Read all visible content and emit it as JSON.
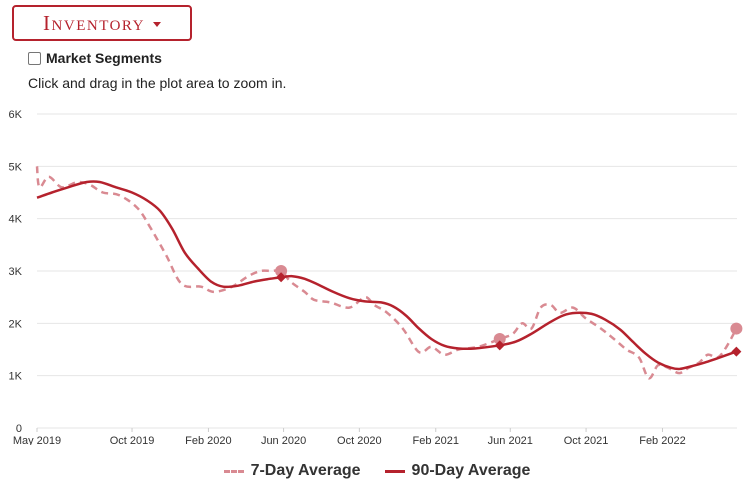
{
  "header": {
    "dropdown_label": "Inventory",
    "checkbox_label": "Market Segments",
    "hint": "Click and drag in the plot area to zoom in."
  },
  "colors": {
    "seven_day": "#d98a92",
    "ninety_day": "#b5222d",
    "accent": "#b5222d"
  },
  "chart_data": {
    "type": "line",
    "x_unit": "date",
    "x_ticks": [
      "May 2019",
      "Oct 2019",
      "Feb 2020",
      "Jun 2020",
      "Oct 2020",
      "Feb 2021",
      "Jun 2021",
      "Oct 2021",
      "Feb 2022"
    ],
    "x_tick_dates": [
      "2019-05-01",
      "2019-10-01",
      "2020-02-01",
      "2020-06-01",
      "2020-10-01",
      "2021-02-01",
      "2021-06-01",
      "2021-10-01",
      "2022-02-01"
    ],
    "x_range": [
      "2019-05-01",
      "2022-06-01"
    ],
    "y_ticks": [
      "0",
      "1K",
      "2K",
      "3K",
      "4K",
      "5K",
      "6K"
    ],
    "ylim": [
      0,
      6000
    ],
    "grid": true,
    "legend_position": "bottom",
    "series": [
      {
        "name": "7-Day Average",
        "style": "dashed",
        "marker": "circle",
        "points": [
          [
            "2019-05-01",
            5000
          ],
          [
            "2019-05-05",
            4600
          ],
          [
            "2019-05-20",
            4800
          ],
          [
            "2019-06-10",
            4600
          ],
          [
            "2019-07-05",
            4700
          ],
          [
            "2019-07-25",
            4650
          ],
          [
            "2019-08-15",
            4500
          ],
          [
            "2019-09-10",
            4450
          ],
          [
            "2019-10-10",
            4200
          ],
          [
            "2019-11-01",
            3800
          ],
          [
            "2019-11-25",
            3300
          ],
          [
            "2019-12-20",
            2750
          ],
          [
            "2020-01-20",
            2700
          ],
          [
            "2020-02-10",
            2600
          ],
          [
            "2020-03-10",
            2700
          ],
          [
            "2020-04-05",
            2900
          ],
          [
            "2020-04-25",
            3000
          ],
          [
            "2020-05-12",
            3000
          ],
          [
            "2020-05-28",
            3000
          ],
          [
            "2020-06-12",
            2800
          ],
          [
            "2020-07-05",
            2600
          ],
          [
            "2020-07-20",
            2450
          ],
          [
            "2020-08-15",
            2400
          ],
          [
            "2020-09-15",
            2300
          ],
          [
            "2020-10-10",
            2500
          ],
          [
            "2020-10-25",
            2350
          ],
          [
            "2020-11-15",
            2200
          ],
          [
            "2020-12-10",
            1900
          ],
          [
            "2021-01-05",
            1450
          ],
          [
            "2021-01-25",
            1550
          ],
          [
            "2021-02-15",
            1400
          ],
          [
            "2021-03-10",
            1500
          ],
          [
            "2021-04-10",
            1550
          ],
          [
            "2021-05-15",
            1700
          ],
          [
            "2021-06-05",
            1800
          ],
          [
            "2021-06-20",
            2000
          ],
          [
            "2021-07-05",
            1900
          ],
          [
            "2021-07-20",
            2300
          ],
          [
            "2021-08-05",
            2350
          ],
          [
            "2021-08-20",
            2200
          ],
          [
            "2021-09-10",
            2300
          ],
          [
            "2021-09-30",
            2100
          ],
          [
            "2021-10-25",
            1900
          ],
          [
            "2021-11-15",
            1700
          ],
          [
            "2021-12-05",
            1500
          ],
          [
            "2021-12-25",
            1350
          ],
          [
            "2022-01-10",
            950
          ],
          [
            "2022-01-25",
            1200
          ],
          [
            "2022-02-10",
            1150
          ],
          [
            "2022-02-28",
            1050
          ],
          [
            "2022-03-15",
            1150
          ],
          [
            "2022-04-01",
            1250
          ],
          [
            "2022-04-15",
            1400
          ],
          [
            "2022-05-01",
            1350
          ],
          [
            "2022-05-15",
            1550
          ],
          [
            "2022-05-31",
            1900
          ]
        ],
        "highlights": [
          [
            "2020-05-28",
            3000
          ],
          [
            "2021-05-15",
            1700
          ],
          [
            "2022-05-31",
            1900
          ]
        ]
      },
      {
        "name": "90-Day Average",
        "style": "solid",
        "marker": "diamond",
        "points": [
          [
            "2019-05-01",
            4400
          ],
          [
            "2019-05-25",
            4500
          ],
          [
            "2019-06-20",
            4600
          ],
          [
            "2019-07-20",
            4700
          ],
          [
            "2019-08-10",
            4700
          ],
          [
            "2019-09-05",
            4600
          ],
          [
            "2019-10-01",
            4500
          ],
          [
            "2019-10-25",
            4350
          ],
          [
            "2019-11-15",
            4150
          ],
          [
            "2019-12-05",
            3800
          ],
          [
            "2019-12-25",
            3350
          ],
          [
            "2020-01-15",
            3050
          ],
          [
            "2020-02-05",
            2800
          ],
          [
            "2020-02-25",
            2700
          ],
          [
            "2020-03-20",
            2720
          ],
          [
            "2020-04-15",
            2800
          ],
          [
            "2020-05-10",
            2850
          ],
          [
            "2020-05-28",
            2880
          ],
          [
            "2020-06-15",
            2900
          ],
          [
            "2020-07-05",
            2850
          ],
          [
            "2020-07-25",
            2750
          ],
          [
            "2020-08-20",
            2600
          ],
          [
            "2020-09-15",
            2480
          ],
          [
            "2020-10-10",
            2420
          ],
          [
            "2020-11-05",
            2400
          ],
          [
            "2020-11-25",
            2320
          ],
          [
            "2020-12-15",
            2150
          ],
          [
            "2021-01-05",
            1900
          ],
          [
            "2021-01-25",
            1700
          ],
          [
            "2021-02-15",
            1570
          ],
          [
            "2021-03-10",
            1520
          ],
          [
            "2021-04-05",
            1520
          ],
          [
            "2021-05-15",
            1580
          ],
          [
            "2021-06-10",
            1650
          ],
          [
            "2021-07-05",
            1800
          ],
          [
            "2021-08-01",
            2000
          ],
          [
            "2021-08-25",
            2150
          ],
          [
            "2021-09-15",
            2200
          ],
          [
            "2021-10-10",
            2180
          ],
          [
            "2021-11-01",
            2070
          ],
          [
            "2021-11-25",
            1880
          ],
          [
            "2021-12-15",
            1650
          ],
          [
            "2022-01-05",
            1420
          ],
          [
            "2022-01-25",
            1250
          ],
          [
            "2022-02-15",
            1150
          ],
          [
            "2022-03-01",
            1130
          ],
          [
            "2022-03-20",
            1180
          ],
          [
            "2022-04-10",
            1250
          ],
          [
            "2022-04-30",
            1330
          ],
          [
            "2022-05-31",
            1460
          ]
        ],
        "highlights": [
          [
            "2020-05-28",
            2880
          ],
          [
            "2021-05-15",
            1580
          ],
          [
            "2022-05-31",
            1460
          ]
        ]
      }
    ]
  }
}
